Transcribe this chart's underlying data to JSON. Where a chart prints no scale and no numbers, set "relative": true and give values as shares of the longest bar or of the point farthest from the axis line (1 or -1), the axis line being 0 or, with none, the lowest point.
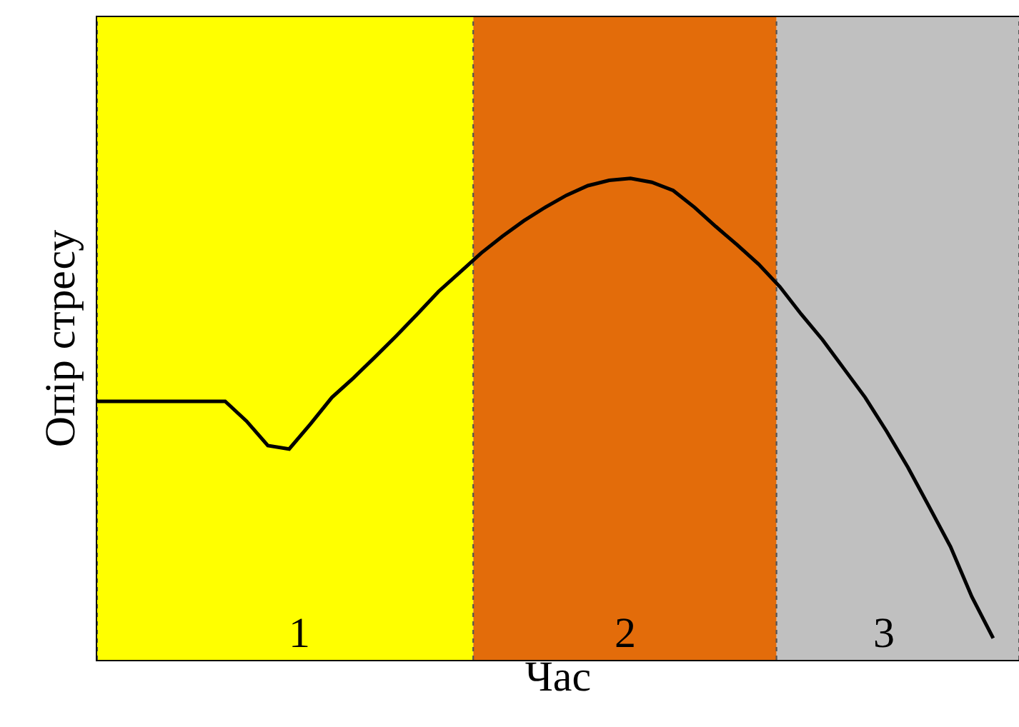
{
  "chart_data": {
    "type": "line",
    "relative": true,
    "xlabel": "Час",
    "ylabel": "Опір стресу",
    "tick_labels": false,
    "grid": false,
    "legend": false,
    "marker": "none",
    "line_style": "solid",
    "categories": [
      null,
      null,
      null,
      null,
      null,
      null,
      null,
      null,
      null,
      null,
      null,
      null,
      null,
      null,
      null,
      null,
      null,
      null,
      null,
      null,
      null,
      null,
      null,
      null,
      null,
      null,
      null,
      null,
      null,
      null,
      null,
      null,
      null,
      null,
      null,
      null,
      null,
      null,
      null,
      null,
      null,
      null,
      null
    ],
    "series": [
      {
        "color": "#000000",
        "values": [
          0.537,
          0.537,
          0.537,
          0.537,
          0.537,
          0.537,
          0.537,
          0.496,
          0.445,
          0.438,
          0.49,
          0.545,
          0.585,
          0.628,
          0.672,
          0.718,
          0.765,
          0.805,
          0.845,
          0.88,
          0.912,
          0.94,
          0.965,
          0.985,
          0.996,
          1,
          0.992,
          0.975,
          0.94,
          0.9,
          0.862,
          0.822,
          0.775,
          0.718,
          0.665,
          0.605,
          0.545,
          0.475,
          0.4,
          0.318,
          0.235,
          0.131,
          0.045
        ]
      }
    ],
    "annotations": [
      "1",
      "2",
      "3"
    ]
  }
}
